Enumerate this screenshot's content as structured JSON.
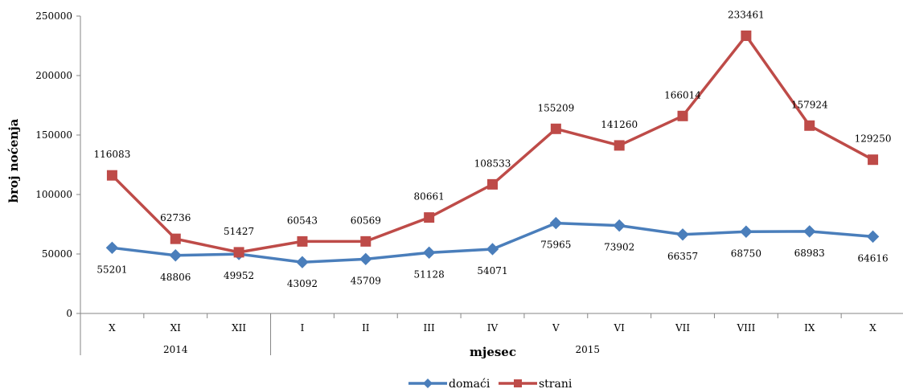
{
  "chart_data": {
    "type": "line",
    "ylabel": "broj noćenja",
    "xlabel": "mjesec",
    "ylim": [
      0,
      250000
    ],
    "yticks": [
      0,
      50000,
      100000,
      150000,
      200000,
      250000
    ],
    "categories": [
      "X",
      "XI",
      "XII",
      "I",
      "II",
      "III",
      "IV",
      "V",
      "VI",
      "VII",
      "VIII",
      "IX",
      "X"
    ],
    "groups": [
      {
        "label": "2014",
        "start": 0,
        "count": 3
      },
      {
        "label": "2015",
        "start": 3,
        "count": 10
      }
    ],
    "series": [
      {
        "name": "domaći",
        "color": "#4A7EBB",
        "marker": "diamond",
        "values": [
          55201,
          48806,
          49952,
          43092,
          45709,
          51128,
          54071,
          75965,
          73902,
          66357,
          68750,
          68983,
          64616
        ]
      },
      {
        "name": "strani",
        "color": "#BE4B48",
        "marker": "square",
        "values": [
          116083,
          62736,
          51427,
          60543,
          60569,
          80661,
          108533,
          155209,
          141260,
          166014,
          233461,
          157924,
          129250
        ]
      }
    ],
    "legend": "bottom",
    "grid": false
  }
}
